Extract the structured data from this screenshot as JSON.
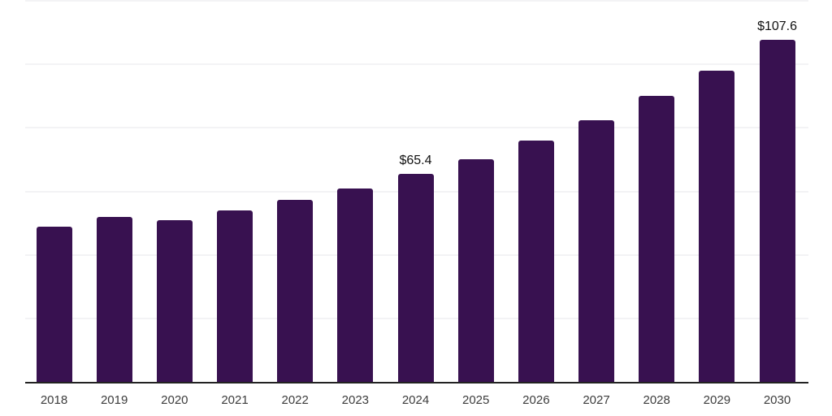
{
  "chart_data": {
    "type": "bar",
    "title": "",
    "xlabel": "",
    "ylabel": "",
    "categories": [
      "2018",
      "2019",
      "2020",
      "2021",
      "2022",
      "2023",
      "2024",
      "2025",
      "2026",
      "2027",
      "2028",
      "2029",
      "2030"
    ],
    "values": [
      49.0,
      52.0,
      51.0,
      54.1,
      57.3,
      60.9,
      65.4,
      70.0,
      75.9,
      82.5,
      90.0,
      98.0,
      107.6
    ],
    "data_labels": [
      null,
      null,
      null,
      null,
      null,
      null,
      "$65.4",
      null,
      null,
      null,
      null,
      null,
      "$107.6"
    ],
    "value_prefix": "$",
    "ylim": [
      0,
      120
    ],
    "gridline_step": 20,
    "grid": true,
    "legend": false,
    "y_tick_labels_visible": false,
    "colors": {
      "bar": "#381150",
      "axis_line": "#222222",
      "gridline": "#f3f3f5",
      "tick_label": "#3c3c3c",
      "data_label": "#111111",
      "background": "#ffffff"
    }
  }
}
